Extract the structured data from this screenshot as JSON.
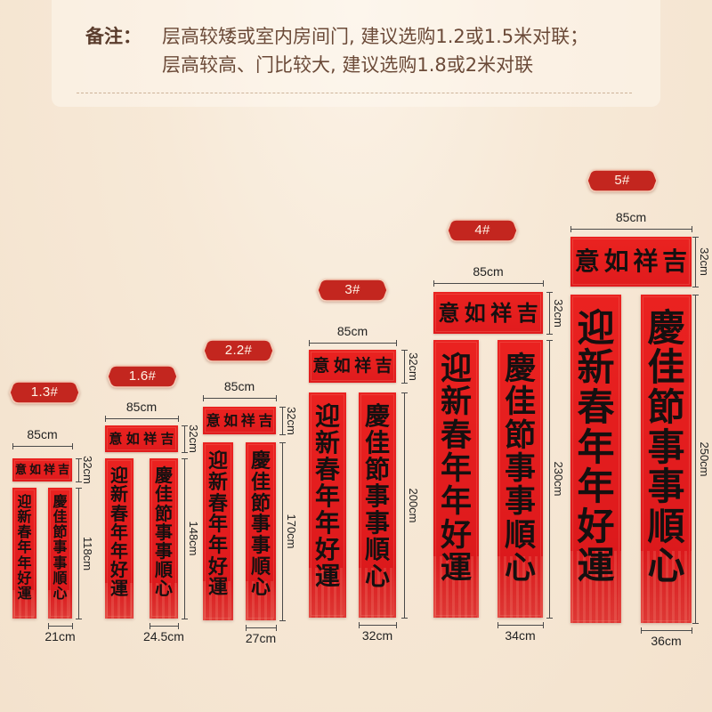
{
  "note": {
    "label": "备注：",
    "line1": "层高较矮或室内房间门, 建议选购1.2或1.5米对联；",
    "line2": "层高较高、门比较大, 建议选购1.8或2米对联"
  },
  "couplet": {
    "banner": "意如祥吉",
    "left": "迎新春年年好運",
    "right": "慶佳節事事順心"
  },
  "sets": [
    {
      "badge": "1.3#",
      "width": "85cm",
      "banner_height": "32cm",
      "scroll_height": "118cm",
      "scroll_width": "21cm"
    },
    {
      "badge": "1.6#",
      "width": "85cm",
      "banner_height": "32cm",
      "scroll_height": "148cm",
      "scroll_width": "24.5cm"
    },
    {
      "badge": "2.2#",
      "width": "85cm",
      "banner_height": "32cm",
      "scroll_height": "170cm",
      "scroll_width": "27cm"
    },
    {
      "badge": "3#",
      "width": "85cm",
      "banner_height": "32cm",
      "scroll_height": "200cm",
      "scroll_width": "32cm"
    },
    {
      "badge": "4#",
      "width": "85cm",
      "banner_height": "32cm",
      "scroll_height": "230cm",
      "scroll_width": "34cm"
    },
    {
      "badge": "5#",
      "width": "85cm",
      "banner_height": "32cm",
      "scroll_height": "250cm",
      "scroll_width": "36cm"
    }
  ],
  "colors": {
    "background": "#f5e6d2",
    "note_text": "#6b4a38",
    "couplet_red": "#e01b1d",
    "badge_red": "#c3261f",
    "calligraphy_ink": "#151010",
    "dimension_line": "#4a4a4a"
  }
}
